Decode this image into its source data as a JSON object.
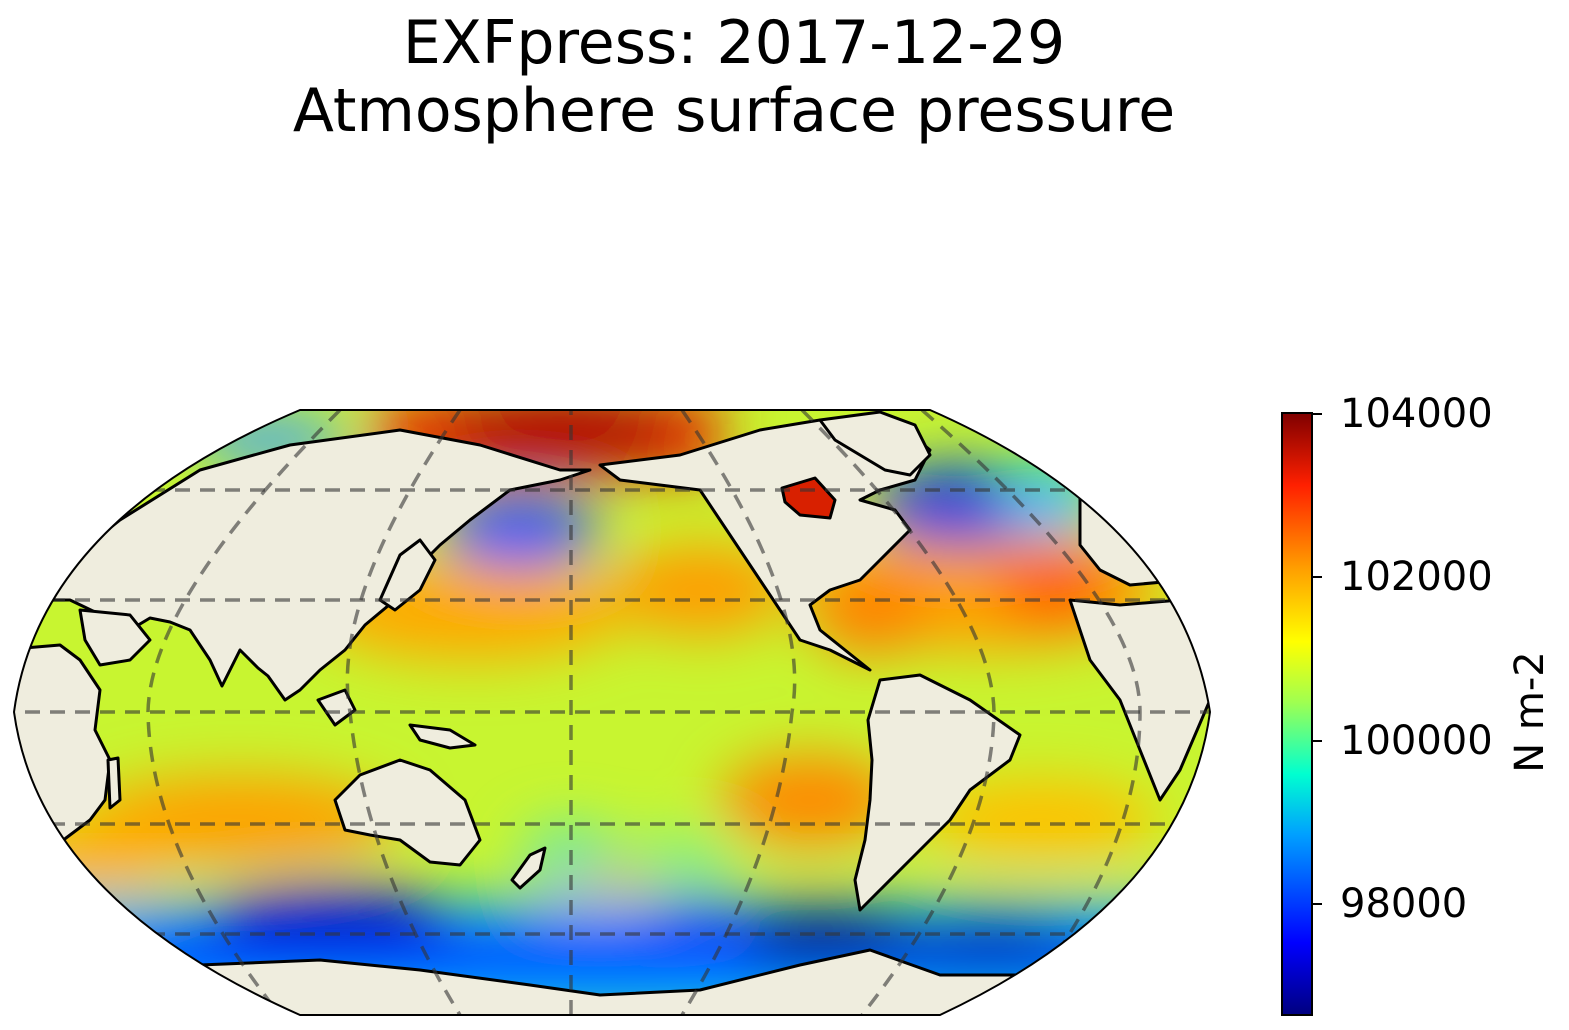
{
  "title": {
    "line1": "EXFpress: 2017-12-29",
    "line2": "Atmosphere surface pressure"
  },
  "map": {
    "projection": "Robinson",
    "central_longitude": 180,
    "gridlines": "dashed",
    "land_color": "#efedde",
    "coastline_color": "#000000"
  },
  "colorbar": {
    "label": "N m-2",
    "colormap": "jet",
    "min": 96600,
    "max": 104000,
    "ticks": [
      "104000",
      "102000",
      "100000",
      "98000"
    ],
    "colors": [
      "#00007f",
      "#0000ff",
      "#00a0ff",
      "#00ffff",
      "#70ff80",
      "#c8ff30",
      "#ffff00",
      "#ffa000",
      "#ff3000",
      "#7f0000"
    ]
  }
}
